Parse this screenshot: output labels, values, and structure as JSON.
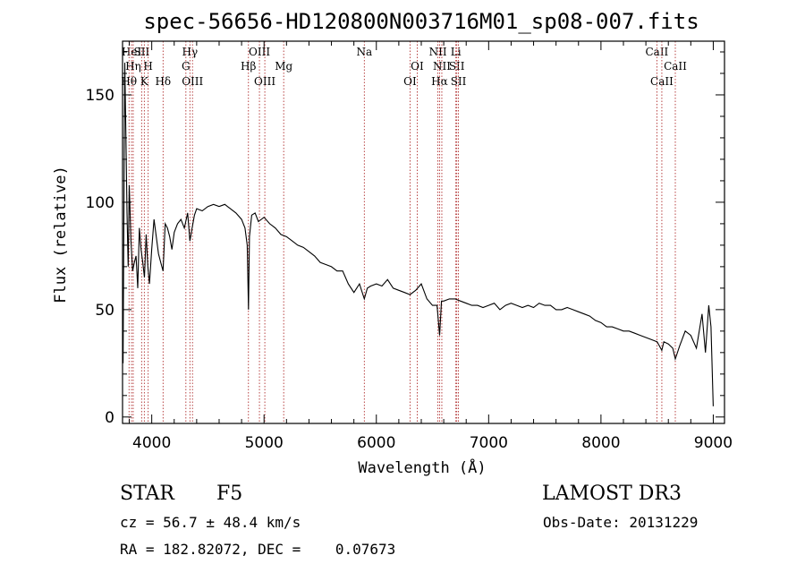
{
  "chart_data": {
    "type": "line",
    "title": "spec-56656-HD120800N003716M01_sp08-007.fits",
    "xlabel": "Wavelength (Å)",
    "ylabel": "Flux (relative)",
    "xlim": [
      3740,
      9100
    ],
    "ylim": [
      -3,
      175
    ],
    "xticks": [
      4000,
      5000,
      6000,
      7000,
      8000,
      9000
    ],
    "yticks": [
      0,
      50,
      100,
      150
    ],
    "x": [
      3745,
      3760,
      3770,
      3780,
      3790,
      3800,
      3815,
      3830,
      3845,
      3860,
      3875,
      3890,
      3905,
      3920,
      3935,
      3950,
      3965,
      3980,
      4000,
      4020,
      4040,
      4060,
      4080,
      4101,
      4120,
      4140,
      4160,
      4180,
      4200,
      4230,
      4260,
      4290,
      4320,
      4340,
      4360,
      4380,
      4400,
      4450,
      4500,
      4550,
      4600,
      4650,
      4700,
      4750,
      4800,
      4830,
      4850,
      4861,
      4870,
      4890,
      4920,
      4950,
      5000,
      5050,
      5100,
      5150,
      5200,
      5250,
      5300,
      5350,
      5400,
      5450,
      5500,
      5550,
      5600,
      5650,
      5700,
      5750,
      5800,
      5850,
      5893,
      5920,
      5950,
      6000,
      6050,
      6100,
      6150,
      6200,
      6250,
      6300,
      6350,
      6400,
      6450,
      6500,
      6540,
      6563,
      6580,
      6600,
      6650,
      6700,
      6750,
      6800,
      6850,
      6900,
      6950,
      7000,
      7050,
      7100,
      7150,
      7200,
      7250,
      7300,
      7350,
      7400,
      7450,
      7500,
      7550,
      7600,
      7650,
      7700,
      7750,
      7800,
      7850,
      7900,
      7950,
      8000,
      8050,
      8100,
      8150,
      8200,
      8250,
      8300,
      8350,
      8400,
      8450,
      8500,
      8542,
      8560,
      8600,
      8640,
      8662,
      8700,
      8750,
      8800,
      8850,
      8900,
      8930,
      8960,
      8980,
      9000
    ],
    "y": [
      25,
      165,
      130,
      95,
      70,
      108,
      82,
      68,
      72,
      75,
      60,
      88,
      78,
      72,
      65,
      85,
      70,
      62,
      78,
      92,
      84,
      76,
      72,
      68,
      90,
      88,
      84,
      78,
      86,
      90,
      92,
      88,
      95,
      82,
      88,
      94,
      97,
      96,
      98,
      99,
      98,
      99,
      97,
      95,
      92,
      88,
      80,
      50,
      84,
      94,
      95,
      91,
      93,
      90,
      88,
      85,
      84,
      82,
      80,
      79,
      77,
      75,
      72,
      71,
      70,
      68,
      68,
      62,
      58,
      62,
      55,
      60,
      61,
      62,
      61,
      64,
      60,
      59,
      58,
      57,
      59,
      62,
      55,
      52,
      52,
      38,
      54,
      54,
      55,
      55,
      54,
      53,
      52,
      52,
      51,
      52,
      53,
      50,
      52,
      53,
      52,
      51,
      52,
      51,
      53,
      52,
      52,
      50,
      50,
      51,
      50,
      49,
      48,
      47,
      45,
      44,
      42,
      42,
      41,
      40,
      40,
      39,
      38,
      37,
      36,
      35,
      31,
      35,
      34,
      32,
      27,
      33,
      40,
      38,
      32,
      48,
      30,
      52,
      42,
      5
    ],
    "line_markers": [
      {
        "label": "HeI",
        "x": 3820,
        "tier": 0,
        "color": "#b03030"
      },
      {
        "label": "SII",
        "x": 3910,
        "tier": 0,
        "color": "#b03030"
      },
      {
        "label": "Hγ",
        "x": 4340,
        "tier": 0,
        "color": "#b03030"
      },
      {
        "label": "OIII",
        "x": 4959,
        "tier": 0,
        "color": "#b03030"
      },
      {
        "label": "Na",
        "x": 5893,
        "tier": 0,
        "color": "#b03030"
      },
      {
        "label": "NII",
        "x": 6548,
        "tier": 0,
        "color": "#b03030"
      },
      {
        "label": "Li",
        "x": 6708,
        "tier": 0,
        "color": "#b03030"
      },
      {
        "label": "CaII",
        "x": 8498,
        "tier": 0,
        "color": "#b03030"
      },
      {
        "label": "Hη",
        "x": 3835,
        "tier": 1,
        "color": "#b03030"
      },
      {
        "label": "H",
        "x": 3968,
        "tier": 1,
        "color": "#b03030"
      },
      {
        "label": "G",
        "x": 4304,
        "tier": 1,
        "color": "#b03030"
      },
      {
        "label": "Hβ",
        "x": 4861,
        "tier": 1,
        "color": "#b03030"
      },
      {
        "label": "Mg",
        "x": 5175,
        "tier": 1,
        "color": "#b03030"
      },
      {
        "label": "OI",
        "x": 6364,
        "tier": 1,
        "color": "#b03030"
      },
      {
        "label": "NII",
        "x": 6583,
        "tier": 1,
        "color": "#b03030"
      },
      {
        "label": "SII",
        "x": 6716,
        "tier": 1,
        "color": "#b03030"
      },
      {
        "label": "CaII",
        "x": 8662,
        "tier": 1,
        "color": "#b03030"
      },
      {
        "label": "Hθ",
        "x": 3798,
        "tier": 2,
        "color": "#b03030"
      },
      {
        "label": "K",
        "x": 3934,
        "tier": 2,
        "color": "#b03030"
      },
      {
        "label": "Hδ",
        "x": 4101,
        "tier": 2,
        "color": "#b03030"
      },
      {
        "label": "OIII",
        "x": 4363,
        "tier": 2,
        "color": "#b03030"
      },
      {
        "label": "OIII",
        "x": 5007,
        "tier": 2,
        "color": "#b03030"
      },
      {
        "label": "OI",
        "x": 6300,
        "tier": 2,
        "color": "#b03030"
      },
      {
        "label": "Hα",
        "x": 6563,
        "tier": 2,
        "color": "#b03030"
      },
      {
        "label": "SII",
        "x": 6731,
        "tier": 2,
        "color": "#b03030"
      },
      {
        "label": "CaII",
        "x": 8542,
        "tier": 2,
        "color": "#b03030"
      }
    ]
  },
  "info": {
    "class": "STAR",
    "subclass": "F5",
    "survey": "LAMOST DR3",
    "cz": "cz = 56.7 ± 48.4 km/s",
    "obs_date": "Obs-Date: 20131229",
    "coords": "RA = 182.82072, DEC =    0.07673"
  },
  "colors": {
    "axes": "#000000",
    "spectrum": "#000000",
    "markers": "#b03030"
  }
}
